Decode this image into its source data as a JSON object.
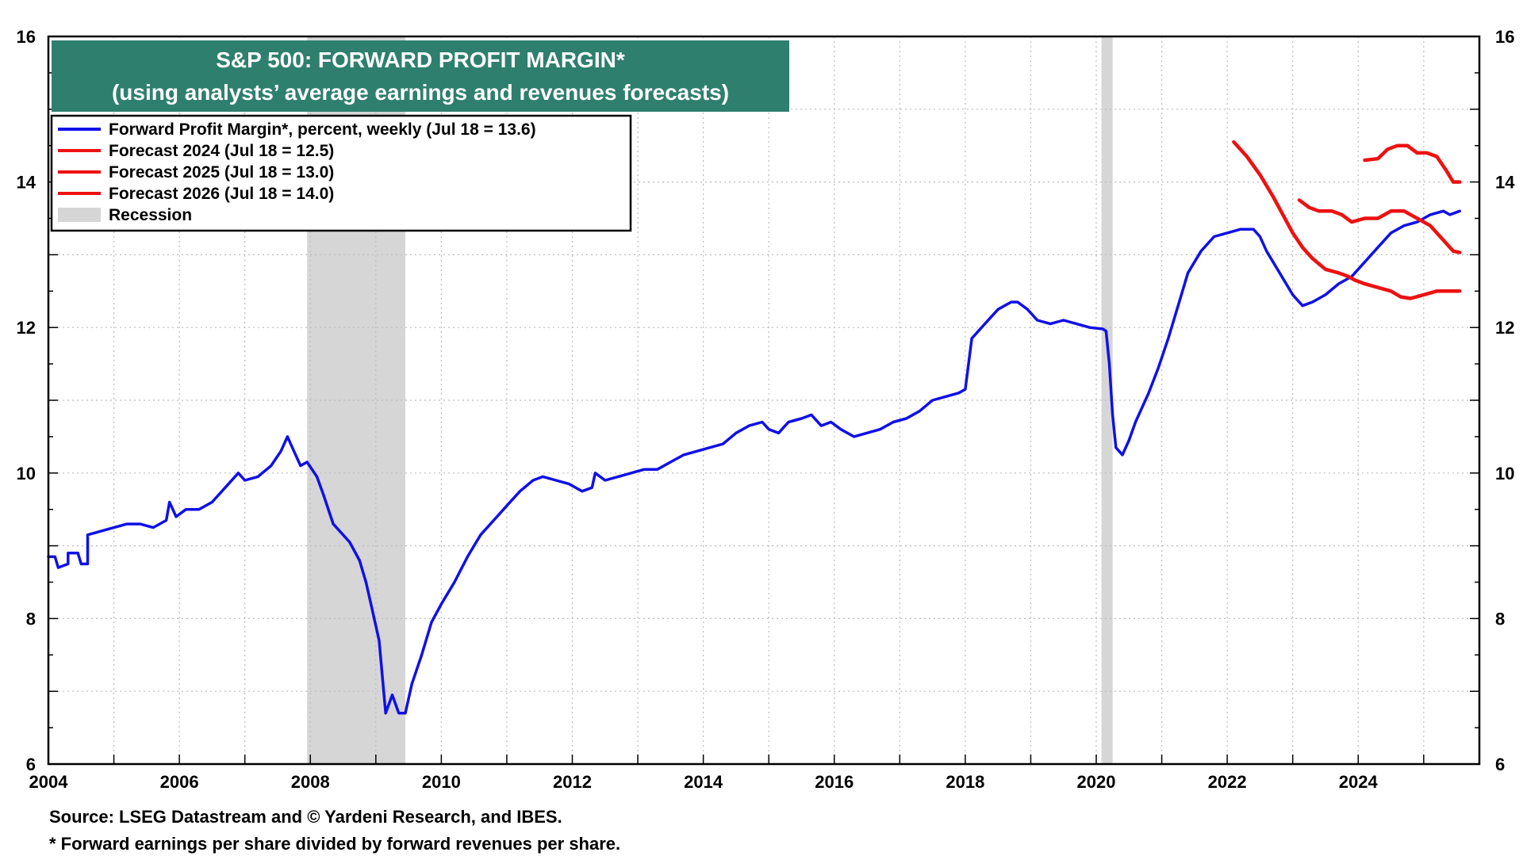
{
  "chart_data": {
    "type": "line",
    "title": "S&P 500: FORWARD PROFIT MARGIN*",
    "subtitle": "(using analysts’ average earnings and revenues forecasts)",
    "xlabel": "",
    "ylabel": "",
    "xlim": [
      2004,
      2025.85
    ],
    "ylim": [
      6,
      16
    ],
    "x_ticks": [
      "2004",
      "2006",
      "2008",
      "2010",
      "2012",
      "2014",
      "2016",
      "2018",
      "2020",
      "2022",
      "2024"
    ],
    "y_ticks": [
      "6",
      "8",
      "10",
      "12",
      "14",
      "16"
    ],
    "grid": true,
    "legend_position": "top-left",
    "legend": {
      "items": [
        {
          "label": "Forward Profit Margin*, percent, weekly (Jul 18 = 13.6)",
          "color": "#1010e8",
          "kind": "line"
        },
        {
          "label": "Forecast 2024 (Jul 18 = 12.5)",
          "color": "#ee1111",
          "kind": "line"
        },
        {
          "label": "Forecast 2025 (Jul 18 = 13.0)",
          "color": "#ee1111",
          "kind": "line"
        },
        {
          "label": "Forecast 2026 (Jul 18 = 14.0)",
          "color": "#ee1111",
          "kind": "line"
        },
        {
          "label": "Recession",
          "color": "#d6d6d6",
          "kind": "box"
        }
      ]
    },
    "recessions": [
      [
        2007.95,
        2009.45
      ],
      [
        2020.08,
        2020.25
      ]
    ],
    "series": [
      {
        "name": "Forward Profit Margin*, percent, weekly (Jul 18 = 13.6)",
        "color": "#1010e8",
        "points": [
          [
            2004.0,
            8.85
          ],
          [
            2004.1,
            8.85
          ],
          [
            2004.15,
            8.7
          ],
          [
            2004.3,
            8.75
          ],
          [
            2004.3,
            8.9
          ],
          [
            2004.45,
            8.9
          ],
          [
            2004.5,
            8.75
          ],
          [
            2004.6,
            8.75
          ],
          [
            2004.6,
            9.15
          ],
          [
            2004.8,
            9.2
          ],
          [
            2005.0,
            9.25
          ],
          [
            2005.2,
            9.3
          ],
          [
            2005.4,
            9.3
          ],
          [
            2005.6,
            9.25
          ],
          [
            2005.8,
            9.35
          ],
          [
            2005.85,
            9.6
          ],
          [
            2005.95,
            9.4
          ],
          [
            2006.1,
            9.5
          ],
          [
            2006.3,
            9.5
          ],
          [
            2006.5,
            9.6
          ],
          [
            2006.7,
            9.8
          ],
          [
            2006.9,
            10.0
          ],
          [
            2007.0,
            9.9
          ],
          [
            2007.2,
            9.95
          ],
          [
            2007.4,
            10.1
          ],
          [
            2007.55,
            10.3
          ],
          [
            2007.65,
            10.5
          ],
          [
            2007.75,
            10.3
          ],
          [
            2007.85,
            10.1
          ],
          [
            2007.95,
            10.15
          ],
          [
            2008.1,
            9.95
          ],
          [
            2008.2,
            9.7
          ],
          [
            2008.35,
            9.3
          ],
          [
            2008.5,
            9.15
          ],
          [
            2008.6,
            9.05
          ],
          [
            2008.75,
            8.8
          ],
          [
            2008.85,
            8.5
          ],
          [
            2008.95,
            8.1
          ],
          [
            2009.05,
            7.7
          ],
          [
            2009.15,
            6.7
          ],
          [
            2009.25,
            6.95
          ],
          [
            2009.35,
            6.7
          ],
          [
            2009.45,
            6.7
          ],
          [
            2009.55,
            7.1
          ],
          [
            2009.7,
            7.5
          ],
          [
            2009.85,
            7.95
          ],
          [
            2010.0,
            8.2
          ],
          [
            2010.2,
            8.5
          ],
          [
            2010.4,
            8.85
          ],
          [
            2010.6,
            9.15
          ],
          [
            2010.8,
            9.35
          ],
          [
            2011.0,
            9.55
          ],
          [
            2011.2,
            9.75
          ],
          [
            2011.4,
            9.9
          ],
          [
            2011.55,
            9.95
          ],
          [
            2011.75,
            9.9
          ],
          [
            2011.95,
            9.85
          ],
          [
            2012.15,
            9.75
          ],
          [
            2012.3,
            9.8
          ],
          [
            2012.35,
            10.0
          ],
          [
            2012.5,
            9.9
          ],
          [
            2012.7,
            9.95
          ],
          [
            2012.9,
            10.0
          ],
          [
            2013.1,
            10.05
          ],
          [
            2013.3,
            10.05
          ],
          [
            2013.5,
            10.15
          ],
          [
            2013.7,
            10.25
          ],
          [
            2013.9,
            10.3
          ],
          [
            2014.1,
            10.35
          ],
          [
            2014.3,
            10.4
          ],
          [
            2014.5,
            10.55
          ],
          [
            2014.7,
            10.65
          ],
          [
            2014.9,
            10.7
          ],
          [
            2015.0,
            10.6
          ],
          [
            2015.15,
            10.55
          ],
          [
            2015.3,
            10.7
          ],
          [
            2015.5,
            10.75
          ],
          [
            2015.65,
            10.8
          ],
          [
            2015.8,
            10.65
          ],
          [
            2015.95,
            10.7
          ],
          [
            2016.1,
            10.6
          ],
          [
            2016.3,
            10.5
          ],
          [
            2016.5,
            10.55
          ],
          [
            2016.7,
            10.6
          ],
          [
            2016.9,
            10.7
          ],
          [
            2017.1,
            10.75
          ],
          [
            2017.3,
            10.85
          ],
          [
            2017.5,
            11.0
          ],
          [
            2017.7,
            11.05
          ],
          [
            2017.9,
            11.1
          ],
          [
            2018.0,
            11.15
          ],
          [
            2018.1,
            11.85
          ],
          [
            2018.3,
            12.05
          ],
          [
            2018.5,
            12.25
          ],
          [
            2018.7,
            12.35
          ],
          [
            2018.8,
            12.35
          ],
          [
            2018.95,
            12.25
          ],
          [
            2019.1,
            12.1
          ],
          [
            2019.3,
            12.05
          ],
          [
            2019.5,
            12.1
          ],
          [
            2019.7,
            12.05
          ],
          [
            2019.9,
            12.0
          ],
          [
            2020.1,
            11.98
          ],
          [
            2020.15,
            11.95
          ],
          [
            2020.2,
            11.5
          ],
          [
            2020.25,
            10.8
          ],
          [
            2020.3,
            10.35
          ],
          [
            2020.4,
            10.25
          ],
          [
            2020.5,
            10.45
          ],
          [
            2020.6,
            10.7
          ],
          [
            2020.8,
            11.1
          ],
          [
            2020.95,
            11.45
          ],
          [
            2021.1,
            11.85
          ],
          [
            2021.25,
            12.3
          ],
          [
            2021.4,
            12.75
          ],
          [
            2021.6,
            13.05
          ],
          [
            2021.8,
            13.25
          ],
          [
            2022.0,
            13.3
          ],
          [
            2022.2,
            13.35
          ],
          [
            2022.4,
            13.35
          ],
          [
            2022.5,
            13.25
          ],
          [
            2022.6,
            13.05
          ],
          [
            2022.8,
            12.75
          ],
          [
            2023.0,
            12.45
          ],
          [
            2023.15,
            12.3
          ],
          [
            2023.3,
            12.35
          ],
          [
            2023.5,
            12.45
          ],
          [
            2023.7,
            12.6
          ],
          [
            2023.9,
            12.7
          ],
          [
            2024.1,
            12.9
          ],
          [
            2024.3,
            13.1
          ],
          [
            2024.5,
            13.3
          ],
          [
            2024.7,
            13.4
          ],
          [
            2024.9,
            13.45
          ],
          [
            2025.1,
            13.55
          ],
          [
            2025.3,
            13.6
          ],
          [
            2025.4,
            13.55
          ],
          [
            2025.55,
            13.6
          ]
        ]
      },
      {
        "name": "Forecast 2024 (Jul 18 = 12.5)",
        "color": "#ee1111",
        "points": [
          [
            2022.1,
            14.55
          ],
          [
            2022.3,
            14.35
          ],
          [
            2022.5,
            14.1
          ],
          [
            2022.7,
            13.8
          ],
          [
            2022.85,
            13.55
          ],
          [
            2023.0,
            13.3
          ],
          [
            2023.15,
            13.1
          ],
          [
            2023.3,
            12.95
          ],
          [
            2023.5,
            12.8
          ],
          [
            2023.7,
            12.75
          ],
          [
            2023.85,
            12.7
          ],
          [
            2023.95,
            12.65
          ],
          [
            2024.1,
            12.6
          ],
          [
            2024.3,
            12.55
          ],
          [
            2024.5,
            12.5
          ],
          [
            2024.65,
            12.42
          ],
          [
            2024.8,
            12.4
          ],
          [
            2025.0,
            12.45
          ],
          [
            2025.2,
            12.5
          ],
          [
            2025.4,
            12.5
          ],
          [
            2025.55,
            12.5
          ]
        ]
      },
      {
        "name": "Forecast 2025 (Jul 18 = 13.0)",
        "color": "#ee1111",
        "points": [
          [
            2023.1,
            13.75
          ],
          [
            2023.25,
            13.65
          ],
          [
            2023.4,
            13.6
          ],
          [
            2023.6,
            13.6
          ],
          [
            2023.75,
            13.55
          ],
          [
            2023.9,
            13.45
          ],
          [
            2024.1,
            13.5
          ],
          [
            2024.3,
            13.5
          ],
          [
            2024.5,
            13.6
          ],
          [
            2024.7,
            13.6
          ],
          [
            2024.9,
            13.5
          ],
          [
            2025.1,
            13.4
          ],
          [
            2025.3,
            13.2
          ],
          [
            2025.45,
            13.05
          ],
          [
            2025.55,
            13.03
          ]
        ]
      },
      {
        "name": "Forecast 2026 (Jul 18 = 14.0)",
        "color": "#ee1111",
        "points": [
          [
            2024.1,
            14.3
          ],
          [
            2024.3,
            14.32
          ],
          [
            2024.45,
            14.45
          ],
          [
            2024.6,
            14.5
          ],
          [
            2024.75,
            14.5
          ],
          [
            2024.9,
            14.4
          ],
          [
            2025.05,
            14.4
          ],
          [
            2025.2,
            14.35
          ],
          [
            2025.35,
            14.15
          ],
          [
            2025.45,
            14.0
          ],
          [
            2025.55,
            14.0
          ]
        ]
      }
    ]
  },
  "footnotes": {
    "source": "Source: LSEG Datastream and © Yardeni Research, and IBES.",
    "definition": "* Forward earnings per share divided by forward revenues per share."
  }
}
